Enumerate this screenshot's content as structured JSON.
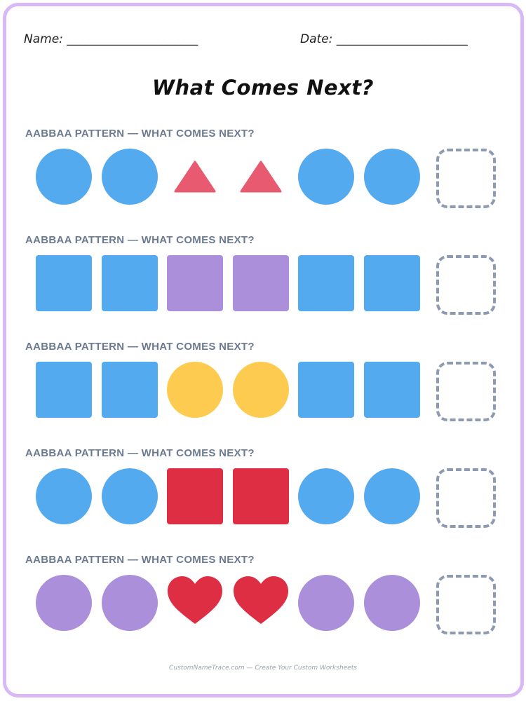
{
  "header": {
    "name_line": "Name: ______________________",
    "date_line": "Date: ______________________"
  },
  "title": "What Comes Next?",
  "colors": {
    "blue": "#54aaee",
    "pink": "#e85a70",
    "purple": "#ab8fdb",
    "yellow": "#fecb51",
    "red": "#dd2e44",
    "blank_border": "#8e9aaf",
    "frame": "#d9b8f6"
  },
  "rows": [
    {
      "label": "AABBAA PATTERN — WHAT COMES NEXT?",
      "items": [
        {
          "shape": "circle",
          "color": "blue"
        },
        {
          "shape": "circle",
          "color": "blue"
        },
        {
          "shape": "triangle",
          "color": "pink"
        },
        {
          "shape": "triangle",
          "color": "pink"
        },
        {
          "shape": "circle",
          "color": "blue"
        },
        {
          "shape": "circle",
          "color": "blue"
        },
        {
          "shape": "blank",
          "color": "blank_border"
        }
      ]
    },
    {
      "label": "AABBAA PATTERN — WHAT COMES NEXT?",
      "items": [
        {
          "shape": "square",
          "color": "blue"
        },
        {
          "shape": "square",
          "color": "blue"
        },
        {
          "shape": "square",
          "color": "purple"
        },
        {
          "shape": "square",
          "color": "purple"
        },
        {
          "shape": "square",
          "color": "blue"
        },
        {
          "shape": "square",
          "color": "blue"
        },
        {
          "shape": "blank",
          "color": "blank_border"
        }
      ]
    },
    {
      "label": "AABBAA PATTERN — WHAT COMES NEXT?",
      "items": [
        {
          "shape": "square",
          "color": "blue"
        },
        {
          "shape": "square",
          "color": "blue"
        },
        {
          "shape": "circle",
          "color": "yellow"
        },
        {
          "shape": "circle",
          "color": "yellow"
        },
        {
          "shape": "square",
          "color": "blue"
        },
        {
          "shape": "square",
          "color": "blue"
        },
        {
          "shape": "blank",
          "color": "blank_border"
        }
      ]
    },
    {
      "label": "AABBAA PATTERN — WHAT COMES NEXT?",
      "items": [
        {
          "shape": "circle",
          "color": "blue"
        },
        {
          "shape": "circle",
          "color": "blue"
        },
        {
          "shape": "square",
          "color": "red"
        },
        {
          "shape": "square",
          "color": "red"
        },
        {
          "shape": "circle",
          "color": "blue"
        },
        {
          "shape": "circle",
          "color": "blue"
        },
        {
          "shape": "blank",
          "color": "blank_border"
        }
      ]
    },
    {
      "label": "AABBAA PATTERN — WHAT COMES NEXT?",
      "items": [
        {
          "shape": "circle",
          "color": "purple"
        },
        {
          "shape": "circle",
          "color": "purple"
        },
        {
          "shape": "heart",
          "color": "red"
        },
        {
          "shape": "heart",
          "color": "red"
        },
        {
          "shape": "circle",
          "color": "purple"
        },
        {
          "shape": "circle",
          "color": "purple"
        },
        {
          "shape": "blank",
          "color": "blank_border"
        }
      ]
    }
  ],
  "footer": "CustomNameTrace.com — Create Your Custom Worksheets"
}
